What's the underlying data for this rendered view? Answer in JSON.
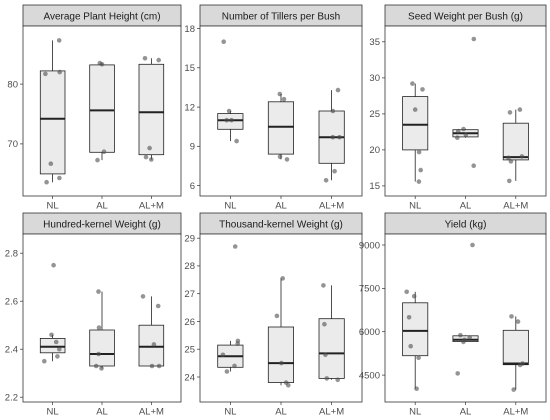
{
  "chart_data": [
    {
      "type": "box",
      "title": "Average Plant Height (cm)",
      "categories": [
        "NL",
        "AL",
        "AL+M"
      ],
      "ylim": [
        61.3,
        89.7
      ],
      "yticks": [
        70,
        80
      ],
      "grid": false,
      "legend": false,
      "boxes": [
        {
          "whisker_low": 63.6,
          "q1": 65.0,
          "median": 74.2,
          "q3": 82.2,
          "whisker_high": 87.3,
          "points": [
            87.3,
            82.0,
            81.7,
            66.7,
            64.3,
            63.6
          ]
        },
        {
          "whisker_low": 67.3,
          "q1": 68.6,
          "median": 75.6,
          "q3": 83.2,
          "whisker_high": 83.5,
          "points": [
            83.5,
            83.3,
            68.7,
            67.3
          ]
        },
        {
          "whisker_low": 67.4,
          "q1": 68.2,
          "median": 75.3,
          "q3": 83.3,
          "whisker_high": 84.3,
          "points": [
            84.3,
            84.0,
            69.3,
            67.8,
            67.4
          ]
        }
      ]
    },
    {
      "type": "box",
      "title": "Number of Tillers per Bush",
      "categories": [
        "NL",
        "AL",
        "AL+M"
      ],
      "ylim": [
        5.2,
        18.2
      ],
      "yticks": [
        6,
        9,
        12,
        15,
        18
      ],
      "grid": false,
      "legend": false,
      "boxes": [
        {
          "whisker_low": 9.4,
          "q1": 10.3,
          "median": 11.0,
          "q3": 11.5,
          "whisker_high": 11.7,
          "points": [
            17.0,
            11.7,
            11.0,
            11.0,
            9.4
          ]
        },
        {
          "whisker_low": 8.0,
          "q1": 8.4,
          "median": 10.5,
          "q3": 12.4,
          "whisker_high": 13.0,
          "points": [
            13.0,
            12.6,
            8.2,
            8.0
          ]
        },
        {
          "whisker_low": 6.4,
          "q1": 7.7,
          "median": 9.7,
          "q3": 11.7,
          "whisker_high": 13.3,
          "points": [
            13.3,
            11.7,
            9.7,
            9.7,
            7.1,
            6.4
          ]
        }
      ]
    },
    {
      "type": "box",
      "title": "Seed Weight per Bush (g)",
      "categories": [
        "NL",
        "AL",
        "AL+M"
      ],
      "ylim": [
        13.6,
        37.2
      ],
      "yticks": [
        15,
        20,
        25,
        30,
        35
      ],
      "grid": false,
      "legend": false,
      "boxes": [
        {
          "whisker_low": 15.6,
          "q1": 20.0,
          "median": 23.5,
          "q3": 27.4,
          "whisker_high": 29.2,
          "points": [
            29.2,
            28.4,
            25.6,
            19.7,
            17.2,
            15.6
          ]
        },
        {
          "whisker_low": 21.7,
          "q1": 21.8,
          "median": 22.3,
          "q3": 22.8,
          "whisker_high": 22.9,
          "points": [
            35.4,
            22.9,
            22.6,
            22.1,
            21.7,
            17.8
          ]
        },
        {
          "whisker_low": 15.7,
          "q1": 18.6,
          "median": 19.0,
          "q3": 23.7,
          "whisker_high": 25.6,
          "points": [
            25.6,
            25.2,
            19.1,
            18.9,
            18.4,
            15.7
          ]
        }
      ]
    },
    {
      "type": "box",
      "title": "Hundred-kernel Weight (g)",
      "categories": [
        "NL",
        "AL",
        "AL+M"
      ],
      "ylim": [
        2.18,
        2.88
      ],
      "yticks": [
        2.2,
        2.4,
        2.6,
        2.8
      ],
      "grid": false,
      "legend": false,
      "boxes": [
        {
          "whisker_low": 2.35,
          "q1": 2.385,
          "median": 2.41,
          "q3": 2.445,
          "whisker_high": 2.46,
          "points": [
            2.75,
            2.46,
            2.43,
            2.4,
            2.37,
            2.35
          ]
        },
        {
          "whisker_low": 2.32,
          "q1": 2.33,
          "median": 2.38,
          "q3": 2.48,
          "whisker_high": 2.64,
          "points": [
            2.64,
            2.49,
            2.38,
            2.33,
            2.32
          ]
        },
        {
          "whisker_low": 2.33,
          "q1": 2.33,
          "median": 2.41,
          "q3": 2.5,
          "whisker_high": 2.62,
          "points": [
            2.62,
            2.58,
            2.42,
            2.33,
            2.33
          ]
        }
      ]
    },
    {
      "type": "box",
      "title": "Thousand-kernel Weight (g)",
      "categories": [
        "NL",
        "AL",
        "AL+M"
      ],
      "ylim": [
        23.1,
        29.15
      ],
      "yticks": [
        24,
        25,
        26,
        27,
        28,
        29
      ],
      "grid": false,
      "legend": false,
      "boxes": [
        {
          "whisker_low": 24.2,
          "q1": 24.35,
          "median": 24.75,
          "q3": 25.15,
          "whisker_high": 25.3,
          "points": [
            28.7,
            25.3,
            25.2,
            24.8,
            24.4,
            24.2
          ]
        },
        {
          "whisker_low": 23.7,
          "q1": 23.8,
          "median": 24.5,
          "q3": 25.8,
          "whisker_high": 27.55,
          "points": [
            27.55,
            26.2,
            24.5,
            23.8,
            23.7
          ]
        },
        {
          "whisker_low": 23.9,
          "q1": 23.95,
          "median": 24.85,
          "q3": 26.1,
          "whisker_high": 27.3,
          "points": [
            27.3,
            25.9,
            24.8,
            23.95,
            23.9
          ]
        }
      ]
    },
    {
      "type": "box",
      "title": "Yield (kg)",
      "categories": [
        "NL",
        "AL",
        "AL+M"
      ],
      "ylim": [
        3570,
        9380
      ],
      "yticks": [
        4500,
        6000,
        7500,
        9000
      ],
      "grid": false,
      "legend": false,
      "boxes": [
        {
          "whisker_low": 4030,
          "q1": 5170,
          "median": 6030,
          "q3": 7000,
          "whisker_high": 7380,
          "points": [
            7380,
            7230,
            6500,
            5500,
            5100,
            4030
          ]
        },
        {
          "whisker_low": 5650,
          "q1": 5660,
          "median": 5720,
          "q3": 5860,
          "whisker_high": 5880,
          "points": [
            9000,
            5880,
            5800,
            5720,
            5650,
            4560
          ]
        },
        {
          "whisker_low": 4000,
          "q1": 4860,
          "median": 4900,
          "q3": 6050,
          "whisker_high": 6530,
          "points": [
            6530,
            6350,
            4900,
            4850,
            4000
          ]
        }
      ]
    }
  ]
}
